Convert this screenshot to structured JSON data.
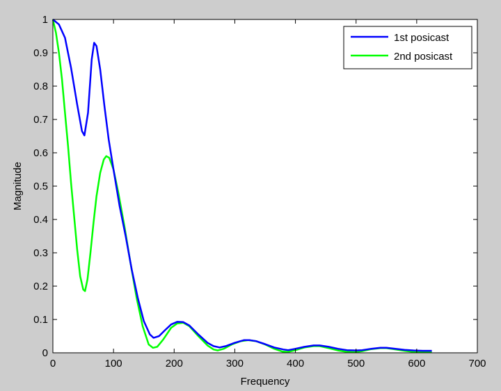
{
  "figure": {
    "background": "#cdcdcd",
    "plot_background": "#ffffff"
  },
  "chart_data": {
    "type": "line",
    "title": "",
    "xlabel": "Frequency",
    "ylabel": "Magnitude",
    "xlim": [
      0,
      700
    ],
    "ylim": [
      0,
      1
    ],
    "xticks": [
      0,
      100,
      200,
      300,
      400,
      500,
      600,
      700
    ],
    "yticks": [
      0,
      0.1,
      0.2,
      0.3,
      0.4,
      0.5,
      0.6,
      0.7,
      0.8,
      0.9,
      1
    ],
    "xtick_labels": [
      "0",
      "100",
      "200",
      "300",
      "400",
      "500",
      "600",
      "700"
    ],
    "ytick_labels": [
      "0",
      "0.1",
      "0.2",
      "0.3",
      "0.4",
      "0.5",
      "0.6",
      "0.7",
      "0.8",
      "0.9",
      "1"
    ],
    "grid": false,
    "legend_position": "top-right",
    "series": [
      {
        "name": "1st posicast",
        "color": "#0000ff",
        "points": [
          [
            0,
            1.0
          ],
          [
            10,
            0.985
          ],
          [
            20,
            0.945
          ],
          [
            30,
            0.855
          ],
          [
            40,
            0.745
          ],
          [
            48,
            0.665
          ],
          [
            52,
            0.652
          ],
          [
            58,
            0.72
          ],
          [
            64,
            0.88
          ],
          [
            68,
            0.93
          ],
          [
            72,
            0.92
          ],
          [
            78,
            0.85
          ],
          [
            85,
            0.74
          ],
          [
            92,
            0.64
          ],
          [
            100,
            0.55
          ],
          [
            110,
            0.44
          ],
          [
            120,
            0.35
          ],
          [
            130,
            0.25
          ],
          [
            140,
            0.165
          ],
          [
            150,
            0.095
          ],
          [
            160,
            0.055
          ],
          [
            166,
            0.045
          ],
          [
            175,
            0.05
          ],
          [
            185,
            0.068
          ],
          [
            195,
            0.085
          ],
          [
            205,
            0.093
          ],
          [
            215,
            0.092
          ],
          [
            225,
            0.082
          ],
          [
            240,
            0.055
          ],
          [
            255,
            0.03
          ],
          [
            265,
            0.02
          ],
          [
            275,
            0.016
          ],
          [
            285,
            0.02
          ],
          [
            300,
            0.03
          ],
          [
            315,
            0.038
          ],
          [
            325,
            0.038
          ],
          [
            335,
            0.035
          ],
          [
            350,
            0.026
          ],
          [
            365,
            0.016
          ],
          [
            380,
            0.01
          ],
          [
            388,
            0.008
          ],
          [
            400,
            0.012
          ],
          [
            415,
            0.018
          ],
          [
            430,
            0.022
          ],
          [
            440,
            0.022
          ],
          [
            455,
            0.018
          ],
          [
            470,
            0.012
          ],
          [
            485,
            0.008
          ],
          [
            500,
            0.007
          ],
          [
            510,
            0.008
          ],
          [
            525,
            0.012
          ],
          [
            540,
            0.015
          ],
          [
            550,
            0.015
          ],
          [
            565,
            0.012
          ],
          [
            580,
            0.009
          ],
          [
            595,
            0.007
          ],
          [
            610,
            0.006
          ],
          [
            625,
            0.006
          ]
        ]
      },
      {
        "name": "2nd posicast",
        "color": "#00ff00",
        "points": [
          [
            0,
            1.0
          ],
          [
            5,
            0.96
          ],
          [
            10,
            0.9
          ],
          [
            15,
            0.82
          ],
          [
            20,
            0.72
          ],
          [
            25,
            0.62
          ],
          [
            30,
            0.51
          ],
          [
            35,
            0.41
          ],
          [
            40,
            0.31
          ],
          [
            45,
            0.23
          ],
          [
            50,
            0.19
          ],
          [
            53,
            0.185
          ],
          [
            57,
            0.22
          ],
          [
            62,
            0.3
          ],
          [
            67,
            0.39
          ],
          [
            72,
            0.47
          ],
          [
            78,
            0.54
          ],
          [
            84,
            0.58
          ],
          [
            88,
            0.59
          ],
          [
            93,
            0.585
          ],
          [
            100,
            0.55
          ],
          [
            108,
            0.48
          ],
          [
            118,
            0.38
          ],
          [
            128,
            0.27
          ],
          [
            138,
            0.165
          ],
          [
            148,
            0.08
          ],
          [
            158,
            0.025
          ],
          [
            165,
            0.015
          ],
          [
            172,
            0.018
          ],
          [
            182,
            0.04
          ],
          [
            195,
            0.075
          ],
          [
            205,
            0.088
          ],
          [
            215,
            0.09
          ],
          [
            225,
            0.08
          ],
          [
            240,
            0.05
          ],
          [
            255,
            0.022
          ],
          [
            265,
            0.01
          ],
          [
            272,
            0.007
          ],
          [
            282,
            0.012
          ],
          [
            295,
            0.025
          ],
          [
            310,
            0.035
          ],
          [
            322,
            0.038
          ],
          [
            335,
            0.035
          ],
          [
            350,
            0.025
          ],
          [
            365,
            0.012
          ],
          [
            378,
            0.004
          ],
          [
            388,
            0.003
          ],
          [
            400,
            0.008
          ],
          [
            415,
            0.016
          ],
          [
            430,
            0.02
          ],
          [
            440,
            0.02
          ],
          [
            455,
            0.014
          ],
          [
            470,
            0.007
          ],
          [
            485,
            0.003
          ],
          [
            498,
            0.002
          ],
          [
            510,
            0.005
          ],
          [
            525,
            0.011
          ],
          [
            540,
            0.014
          ],
          [
            550,
            0.014
          ],
          [
            565,
            0.01
          ],
          [
            580,
            0.006
          ],
          [
            595,
            0.003
          ],
          [
            610,
            0.002
          ],
          [
            625,
            0.002
          ]
        ]
      }
    ]
  }
}
